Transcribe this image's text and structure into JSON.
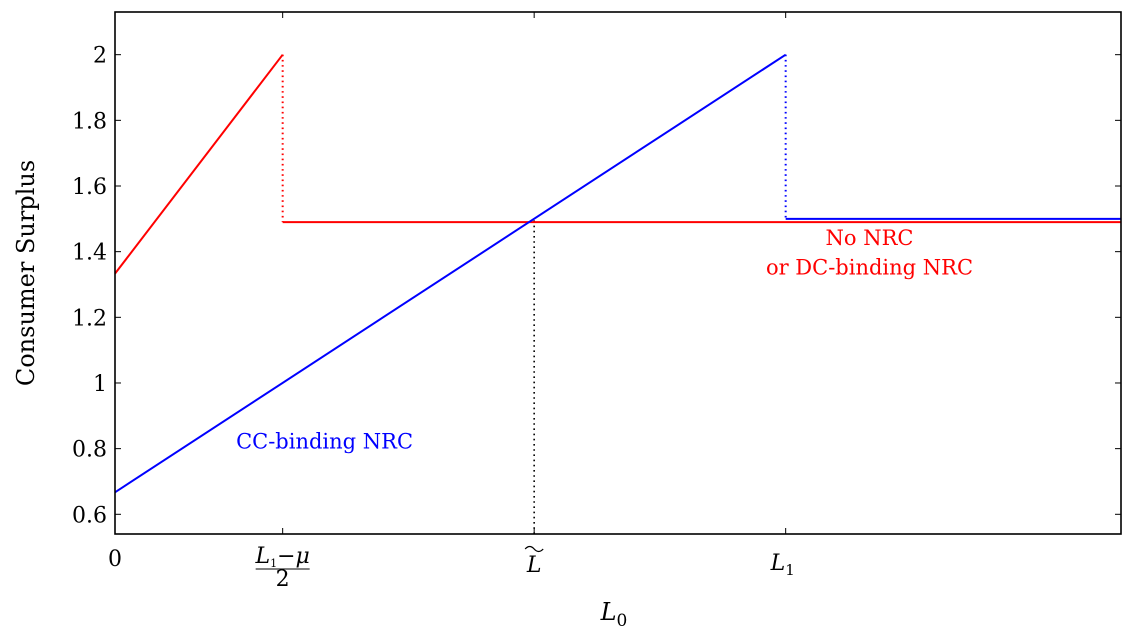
{
  "chart_data": {
    "type": "line",
    "title": "",
    "xlabel": "L",
    "xlabel_sub": "0",
    "ylabel": "Consumer Surplus",
    "ylim": [
      0.54,
      2.13
    ],
    "yticks": [
      0.6,
      0.8,
      1,
      1.2,
      1.4,
      1.6,
      1.8,
      2
    ],
    "ytick_labels": [
      "0.6",
      "0.8",
      "1",
      "1.2",
      "1.4",
      "1.6",
      "1.8",
      "2"
    ],
    "xlim": [
      0,
      6
    ],
    "xticks": [
      {
        "x": 0,
        "label": "0"
      },
      {
        "x": 1,
        "label": "L1−μ/2"
      },
      {
        "x": 2.5,
        "label": "L̃"
      },
      {
        "x": 4,
        "label": "L1"
      }
    ],
    "grid": false,
    "series": [
      {
        "name": "No NRC or DC-binding NRC",
        "color": "#ff0000",
        "segments": [
          [
            [
              0,
              1.333
            ],
            [
              1,
              2.0
            ]
          ],
          [
            [
              1,
              1.49
            ],
            [
              6,
              1.49
            ]
          ]
        ],
        "dotted": [
          [
            [
              1,
              2.0
            ],
            [
              1,
              1.49
            ]
          ]
        ]
      },
      {
        "name": "CC-binding NRC",
        "color": "#0000ff",
        "segments": [
          [
            [
              0,
              0.667
            ],
            [
              4,
              2.0
            ]
          ],
          [
            [
              4,
              1.5
            ],
            [
              6,
              1.5
            ]
          ]
        ],
        "dotted": [
          [
            [
              4,
              2.0
            ],
            [
              4,
              1.5
            ]
          ]
        ]
      }
    ],
    "reference_lines": [
      {
        "from": [
          2.5,
          0.54
        ],
        "to": [
          2.5,
          1.5
        ],
        "color": "#000000",
        "style": "dotted"
      }
    ],
    "annotations": [
      {
        "text": "No NRC",
        "color": "#ff0000",
        "x": 4.5,
        "y": 1.42
      },
      {
        "text": "or DC-binding NRC",
        "color": "#ff0000",
        "x": 4.5,
        "y": 1.33
      },
      {
        "text": "CC-binding NRC",
        "color": "#0000ff",
        "x": 1.25,
        "y": 0.8
      }
    ]
  }
}
